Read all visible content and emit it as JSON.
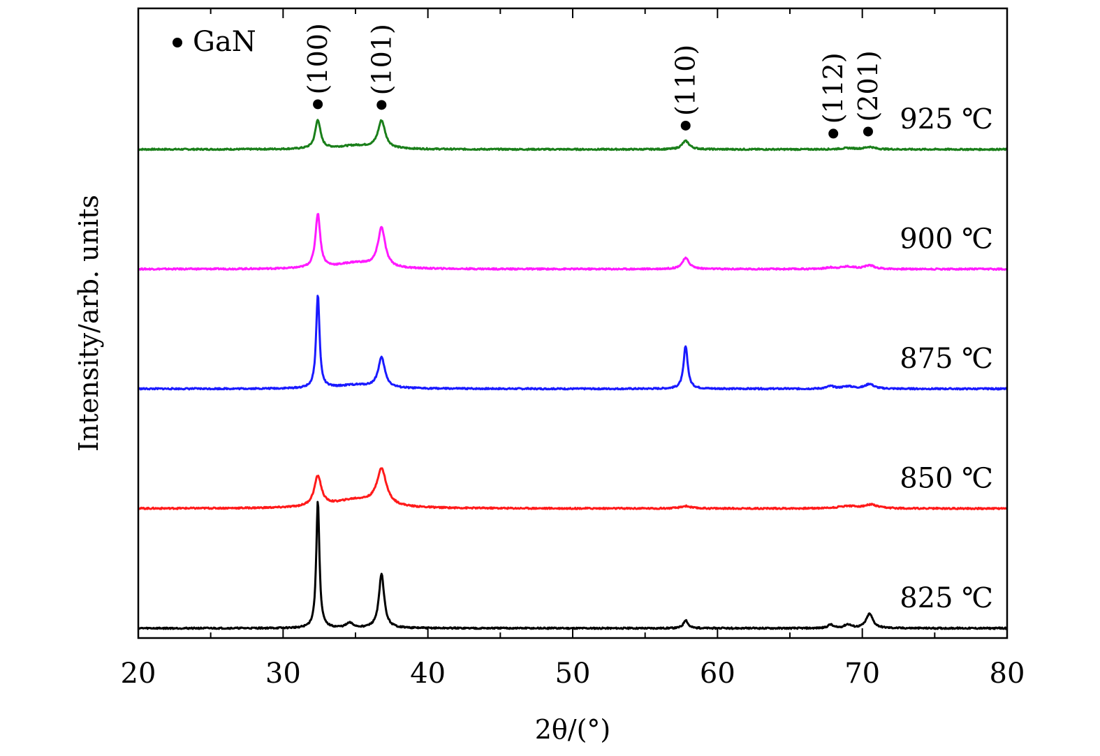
{
  "chart_data": {
    "type": "line",
    "xlabel": "2θ/(°)",
    "ylabel": "Intensity/arb. units",
    "xlim": [
      20,
      80
    ],
    "x_ticks": [
      "20",
      "30",
      "40",
      "50",
      "60",
      "70",
      "80"
    ],
    "grid": false,
    "legend": {
      "position": "top-left",
      "marker": "●",
      "text": "GaN"
    },
    "peak_labels": [
      {
        "label": "(100)",
        "x": 32.4
      },
      {
        "label": "(101)",
        "x": 36.8
      },
      {
        "label": "(110)",
        "x": 57.8
      },
      {
        "label": "(112)",
        "x": 68.0
      },
      {
        "label": "(201)",
        "x": 70.4
      }
    ],
    "series": [
      {
        "name": "925 ℃",
        "color": "#1a7f1a",
        "baseline": 4.0,
        "peaks": [
          [
            32.4,
            0.24,
            0.22
          ],
          [
            36.8,
            0.23,
            0.3
          ],
          [
            35.0,
            0.03,
            1.5
          ],
          [
            57.8,
            0.07,
            0.3
          ],
          [
            69.0,
            0.01,
            0.6
          ],
          [
            70.5,
            0.02,
            0.4
          ]
        ]
      },
      {
        "name": "900 ℃",
        "color": "#ff1aff",
        "baseline": 3.0,
        "peaks": [
          [
            32.4,
            0.45,
            0.2
          ],
          [
            36.8,
            0.33,
            0.3
          ],
          [
            35.0,
            0.05,
            1.5
          ],
          [
            57.8,
            0.09,
            0.3
          ],
          [
            67.8,
            0.01,
            0.4
          ],
          [
            69.0,
            0.02,
            0.6
          ],
          [
            70.5,
            0.03,
            0.4
          ]
        ]
      },
      {
        "name": "875 ℃",
        "color": "#1a1aff",
        "baseline": 2.0,
        "peaks": [
          [
            32.4,
            0.78,
            0.14
          ],
          [
            36.8,
            0.25,
            0.28
          ],
          [
            35.0,
            0.03,
            1.5
          ],
          [
            57.8,
            0.36,
            0.17
          ],
          [
            67.8,
            0.02,
            0.3
          ],
          [
            69.0,
            0.02,
            0.5
          ],
          [
            70.5,
            0.04,
            0.35
          ]
        ]
      },
      {
        "name": "850 ℃",
        "color": "#ff1a1a",
        "baseline": 1.0,
        "peaks": [
          [
            32.4,
            0.25,
            0.3
          ],
          [
            36.8,
            0.3,
            0.4
          ],
          [
            35.0,
            0.07,
            1.8
          ],
          [
            57.8,
            0.02,
            0.4
          ],
          [
            69.0,
            0.02,
            0.8
          ],
          [
            70.6,
            0.03,
            0.5
          ]
        ]
      },
      {
        "name": "825 ℃",
        "color": "#000000",
        "baseline": 0.0,
        "peaks": [
          [
            32.4,
            1.06,
            0.13
          ],
          [
            36.8,
            0.45,
            0.22
          ],
          [
            34.6,
            0.04,
            0.3
          ],
          [
            57.8,
            0.07,
            0.18
          ],
          [
            67.8,
            0.03,
            0.2
          ],
          [
            69.0,
            0.03,
            0.3
          ],
          [
            70.5,
            0.12,
            0.28
          ]
        ]
      }
    ],
    "y_units_per_series_offset": 1.0
  }
}
